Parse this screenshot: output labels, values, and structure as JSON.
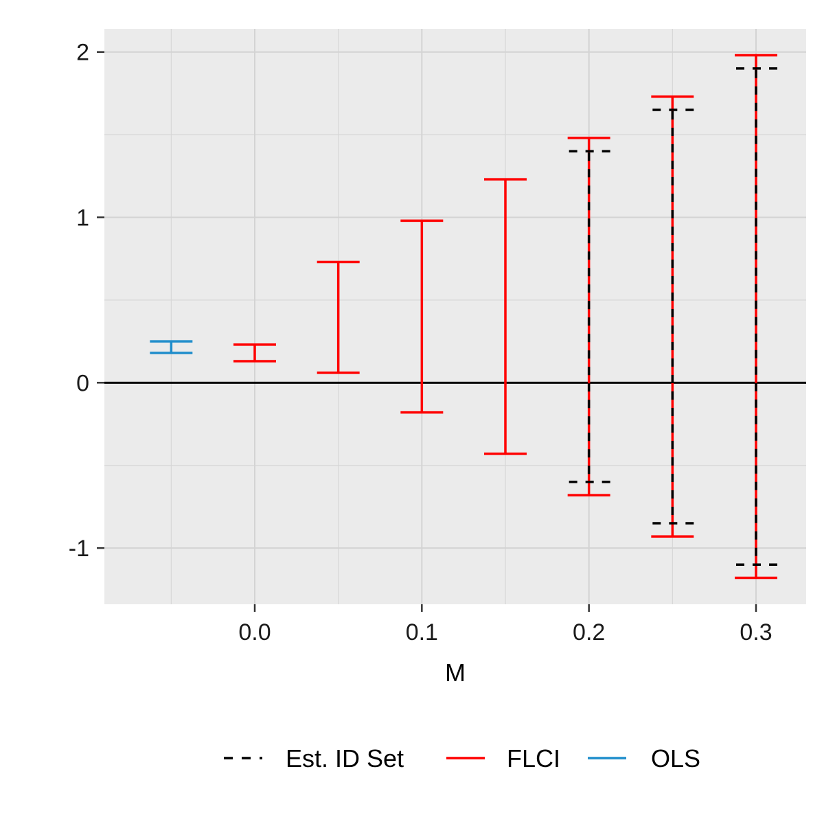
{
  "chart_data": {
    "type": "errorbar",
    "xlabel": "M",
    "ylabel": "",
    "xlim": [
      -0.09,
      0.33
    ],
    "ylim": [
      -1.34,
      2.14
    ],
    "x_ticks": [
      0.0,
      0.1,
      0.2,
      0.3
    ],
    "x_tick_labels": [
      "0.0",
      "0.1",
      "0.2",
      "0.3"
    ],
    "y_ticks": [
      -1,
      0,
      1,
      2
    ],
    "y_tick_labels": [
      "-1",
      "0",
      "1",
      "2"
    ],
    "x_minor_ticks": [
      -0.05,
      0.05,
      0.15,
      0.25
    ],
    "y_minor_ticks": [
      -0.5,
      0.5,
      1.5
    ],
    "hline": 0,
    "grid": true,
    "legend_position": "bottom",
    "series": [
      {
        "name": "Est. ID Set",
        "color": "#000000",
        "linestyle": "dashed",
        "points": [
          {
            "x": 0.2,
            "lb": -0.6,
            "ub": 1.4
          },
          {
            "x": 0.25,
            "lb": -0.85,
            "ub": 1.65
          },
          {
            "x": 0.3,
            "lb": -1.1,
            "ub": 1.9
          }
        ]
      },
      {
        "name": "FLCI",
        "color": "#ff0000",
        "linestyle": "solid",
        "points": [
          {
            "x": 0.0,
            "lb": 0.13,
            "ub": 0.23
          },
          {
            "x": 0.05,
            "lb": 0.06,
            "ub": 0.73
          },
          {
            "x": 0.1,
            "lb": -0.18,
            "ub": 0.98
          },
          {
            "x": 0.15,
            "lb": -0.43,
            "ub": 1.23
          },
          {
            "x": 0.2,
            "lb": -0.68,
            "ub": 1.48
          },
          {
            "x": 0.25,
            "lb": -0.93,
            "ub": 1.73
          },
          {
            "x": 0.3,
            "lb": -1.18,
            "ub": 1.98
          }
        ]
      },
      {
        "name": "OLS",
        "color": "#1f8dcb",
        "linestyle": "solid",
        "points": [
          {
            "x": -0.05,
            "lb": 0.18,
            "ub": 0.25
          }
        ]
      }
    ]
  }
}
